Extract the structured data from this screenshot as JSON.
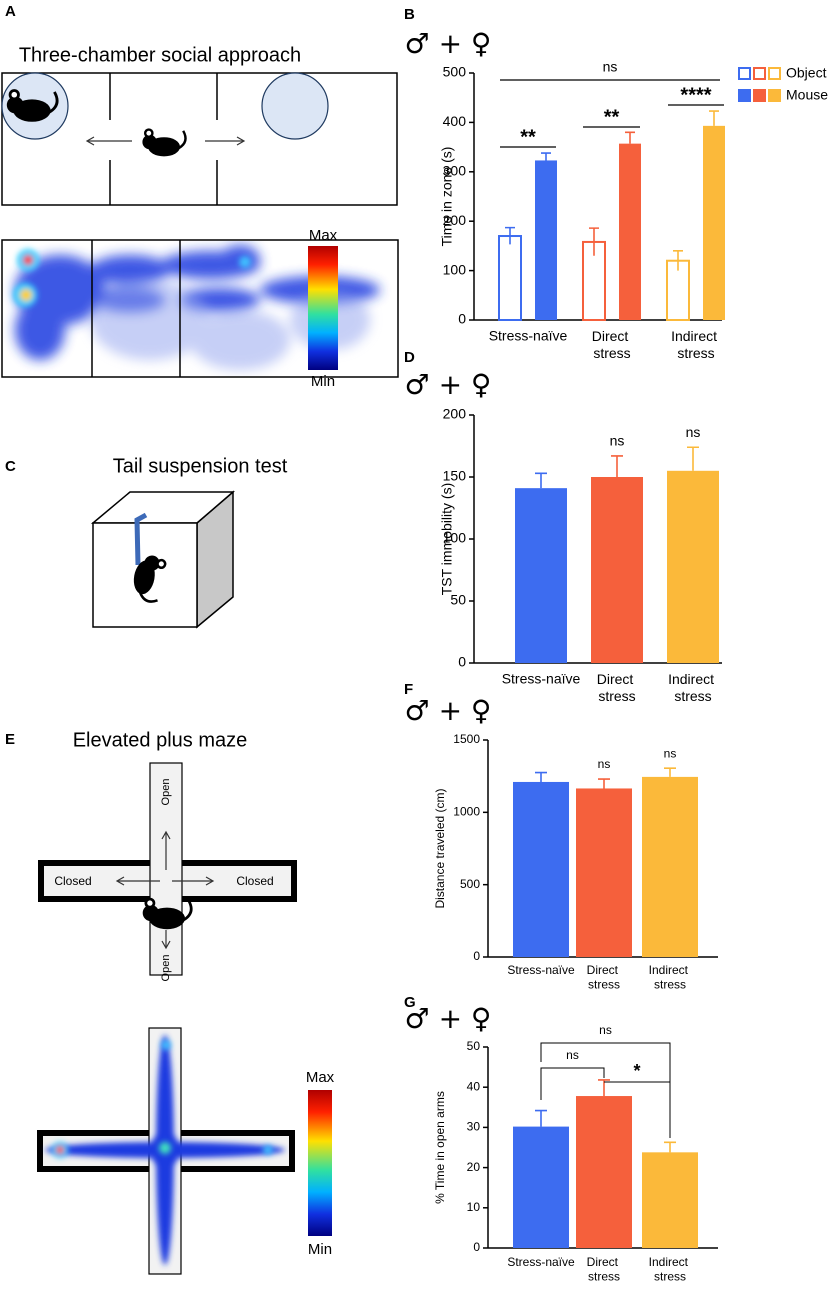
{
  "panel_labels": [
    "A",
    "B",
    "C",
    "D",
    "E",
    "F",
    "G"
  ],
  "diagrams": {
    "three_chamber": {
      "title": "Three-chamber social approach",
      "scale_max": "Max",
      "scale_min": "Min"
    },
    "tail_suspension": {
      "title": "Tail suspension test"
    },
    "plus_maze": {
      "title": "Elevated plus maze",
      "arm_labels": [
        "Open",
        "Closed",
        "Closed",
        "Open"
      ],
      "scale_max": "Max",
      "scale_min": "Min"
    }
  },
  "chart_data": [
    {
      "type": "grouped_bar",
      "sex_label": "♂ + ♀",
      "ylabel": "Time in zone (s)",
      "categories": [
        "Stress-naïve",
        "Direct stress",
        "Indirect stress"
      ],
      "colors": [
        "#3d6cf0",
        "#f5603c",
        "#fbb93a"
      ],
      "series": [
        {
          "name": "Object",
          "style": "outline",
          "values": [
            170,
            158,
            120
          ],
          "errors": [
            17,
            28,
            20
          ]
        },
        {
          "name": "Mouse",
          "style": "filled",
          "values": [
            323,
            357,
            393
          ],
          "errors": [
            15,
            23,
            30
          ]
        }
      ],
      "ylim": [
        0,
        500
      ],
      "yticks": [
        0,
        100,
        200,
        300,
        400,
        500
      ],
      "annotations": [
        "ns",
        "**",
        "**",
        "****"
      ]
    },
    {
      "type": "bar",
      "sex_label": "♂ + ♀",
      "ylabel": "TST immobility (s)",
      "categories": [
        "Stress-naïve",
        "Direct stress",
        "Indirect stress"
      ],
      "colors": [
        "#3d6cf0",
        "#f5603c",
        "#fbb93a"
      ],
      "values": [
        141,
        150,
        155
      ],
      "errors": [
        12,
        17,
        19
      ],
      "ylim": [
        0,
        200
      ],
      "yticks": [
        0,
        50,
        100,
        150,
        200
      ],
      "annotations": [
        "ns",
        "ns"
      ]
    },
    {
      "type": "bar",
      "sex_label": "♂ + ♀",
      "ylabel": "Distance traveled (cm)",
      "categories": [
        "Stress-naïve",
        "Direct stress",
        "Indirect stress"
      ],
      "colors": [
        "#3d6cf0",
        "#f5603c",
        "#fbb93a"
      ],
      "values": [
        1210,
        1165,
        1245
      ],
      "errors": [
        65,
        65,
        60
      ],
      "ylim": [
        0,
        1500
      ],
      "yticks": [
        0,
        500,
        1000,
        1500
      ],
      "annotations": [
        "ns",
        "ns"
      ]
    },
    {
      "type": "bar",
      "sex_label": "♂ + ♀",
      "ylabel": "% Time in open arms",
      "categories": [
        "Stress-naïve",
        "Direct stress",
        "Indirect stress"
      ],
      "colors": [
        "#3d6cf0",
        "#f5603c",
        "#fbb93a"
      ],
      "values": [
        30.2,
        37.8,
        23.8
      ],
      "errors": [
        4,
        4,
        2.5
      ],
      "ylim": [
        0,
        50
      ],
      "yticks": [
        0,
        10,
        20,
        30,
        40,
        50
      ],
      "annotations": [
        "ns",
        "ns",
        "*"
      ]
    }
  ]
}
